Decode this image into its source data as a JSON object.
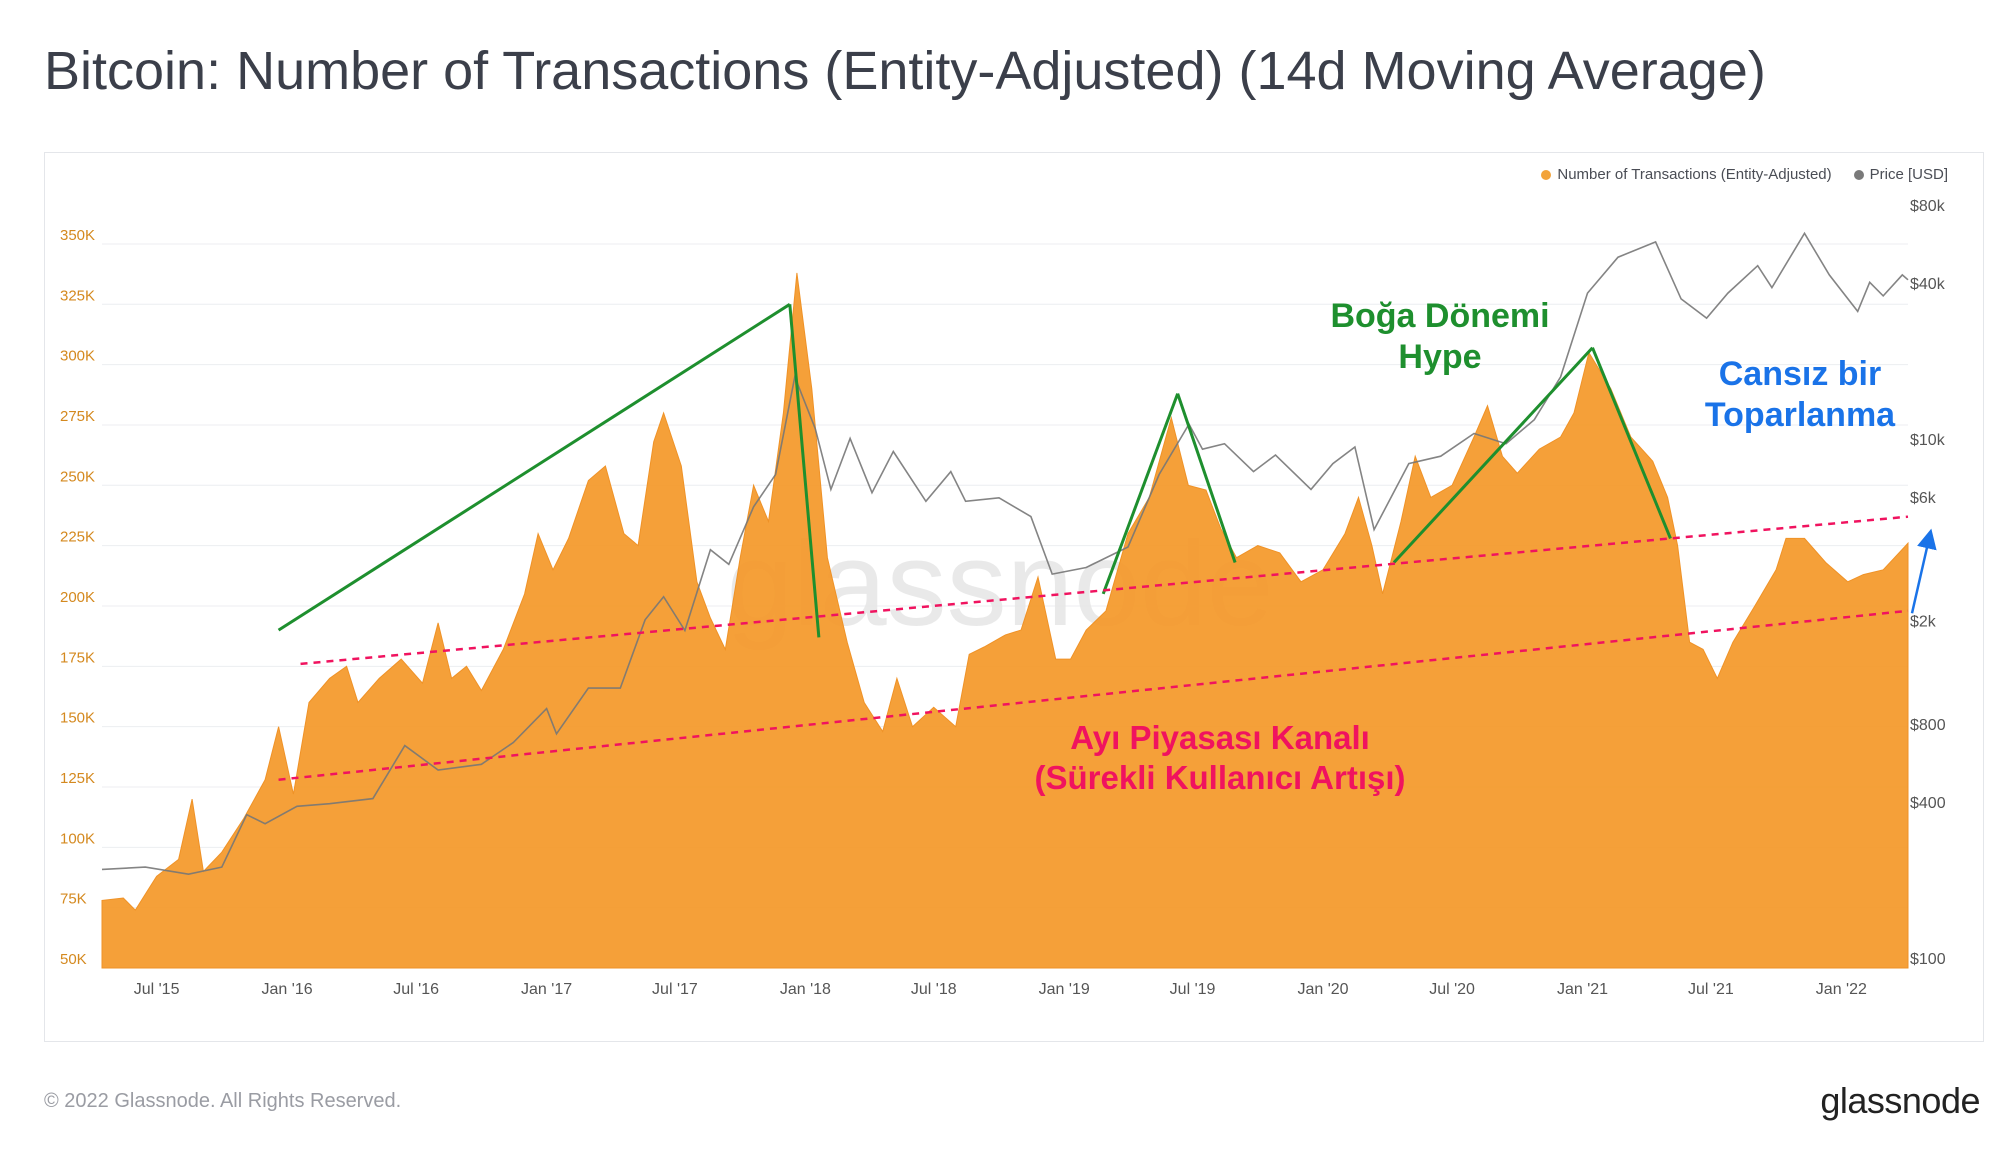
{
  "title": "Bitcoin: Number of Transactions (Entity-Adjusted) (14d Moving Average)",
  "footer": {
    "copyright": "© 2022 Glassnode. All Rights Reserved.",
    "logo": "glassnode"
  },
  "watermark": "glassnode",
  "chart_data": {
    "type": "area",
    "legend": [
      {
        "name": "Number of Transactions (Entity-Adjusted)",
        "color": "#f7931a"
      },
      {
        "name": "Price [USD]",
        "color": "#7a7a7a"
      }
    ],
    "left_axis": {
      "ticks": [
        "50K",
        "75K",
        "100K",
        "125K",
        "150K",
        "175K",
        "200K",
        "225K",
        "250K",
        "275K",
        "300K",
        "325K",
        "350K"
      ],
      "ylim": [
        50000,
        362000
      ],
      "color": "#d4891f"
    },
    "right_axis": {
      "scale": "log",
      "ticks": [
        "$100",
        "$400",
        "$800",
        "$2k",
        "$6k",
        "$10k",
        "$40k",
        "$80k"
      ],
      "ylim": [
        100,
        80000
      ]
    },
    "x_ticks": [
      "Jul '15",
      "Jan '16",
      "Jul '16",
      "Jan '17",
      "Jul '17",
      "Jan '18",
      "Jul '18",
      "Jan '19",
      "Jul '19",
      "Jan '20",
      "Jul '20",
      "Jan '21",
      "Jul '21",
      "Jan '22"
    ],
    "x_range": [
      "2015-04-15",
      "2022-04-05"
    ],
    "series": [
      {
        "name": "Number of Transactions (Entity-Adjusted)",
        "axis": "left",
        "points": [
          [
            "2015-04-15",
            78000
          ],
          [
            "2015-05-15",
            79000
          ],
          [
            "2015-06-01",
            74000
          ],
          [
            "2015-07-01",
            88000
          ],
          [
            "2015-08-01",
            95000
          ],
          [
            "2015-08-20",
            120000
          ],
          [
            "2015-09-05",
            90000
          ],
          [
            "2015-10-01",
            98000
          ],
          [
            "2015-11-01",
            112000
          ],
          [
            "2015-12-01",
            128000
          ],
          [
            "2015-12-20",
            150000
          ],
          [
            "2016-01-10",
            122000
          ],
          [
            "2016-02-01",
            160000
          ],
          [
            "2016-03-01",
            170000
          ],
          [
            "2016-03-25",
            175000
          ],
          [
            "2016-04-10",
            160000
          ],
          [
            "2016-05-10",
            170000
          ],
          [
            "2016-06-10",
            178000
          ],
          [
            "2016-07-10",
            168000
          ],
          [
            "2016-08-01",
            193000
          ],
          [
            "2016-08-20",
            170000
          ],
          [
            "2016-09-10",
            175000
          ],
          [
            "2016-10-01",
            165000
          ],
          [
            "2016-11-01",
            182000
          ],
          [
            "2016-12-01",
            205000
          ],
          [
            "2016-12-20",
            230000
          ],
          [
            "2017-01-10",
            215000
          ],
          [
            "2017-02-01",
            228000
          ],
          [
            "2017-03-01",
            252000
          ],
          [
            "2017-03-25",
            258000
          ],
          [
            "2017-04-20",
            230000
          ],
          [
            "2017-05-10",
            225000
          ],
          [
            "2017-06-01",
            268000
          ],
          [
            "2017-06-15",
            280000
          ],
          [
            "2017-07-10",
            258000
          ],
          [
            "2017-08-01",
            210000
          ],
          [
            "2017-08-20",
            195000
          ],
          [
            "2017-09-10",
            182000
          ],
          [
            "2017-10-01",
            220000
          ],
          [
            "2017-10-20",
            250000
          ],
          [
            "2017-11-10",
            235000
          ],
          [
            "2017-12-01",
            280000
          ],
          [
            "2017-12-20",
            338000
          ],
          [
            "2018-01-10",
            290000
          ],
          [
            "2018-02-01",
            220000
          ],
          [
            "2018-03-01",
            185000
          ],
          [
            "2018-03-25",
            160000
          ],
          [
            "2018-04-20",
            148000
          ],
          [
            "2018-05-10",
            170000
          ],
          [
            "2018-06-01",
            150000
          ],
          [
            "2018-07-01",
            158000
          ],
          [
            "2018-08-01",
            150000
          ],
          [
            "2018-08-20",
            180000
          ],
          [
            "2018-09-10",
            183000
          ],
          [
            "2018-10-10",
            188000
          ],
          [
            "2018-11-01",
            190000
          ],
          [
            "2018-11-25",
            212000
          ],
          [
            "2018-12-20",
            178000
          ],
          [
            "2019-01-10",
            178000
          ],
          [
            "2019-02-01",
            190000
          ],
          [
            "2019-03-01",
            198000
          ],
          [
            "2019-04-01",
            230000
          ],
          [
            "2019-05-01",
            245000
          ],
          [
            "2019-06-01",
            278000
          ],
          [
            "2019-06-25",
            250000
          ],
          [
            "2019-07-20",
            248000
          ],
          [
            "2019-08-10",
            232000
          ],
          [
            "2019-09-01",
            220000
          ],
          [
            "2019-10-01",
            225000
          ],
          [
            "2019-11-01",
            222000
          ],
          [
            "2019-12-01",
            210000
          ],
          [
            "2020-01-01",
            215000
          ],
          [
            "2020-02-01",
            230000
          ],
          [
            "2020-02-20",
            245000
          ],
          [
            "2020-03-10",
            225000
          ],
          [
            "2020-03-25",
            205000
          ],
          [
            "2020-04-20",
            235000
          ],
          [
            "2020-05-10",
            262000
          ],
          [
            "2020-06-01",
            245000
          ],
          [
            "2020-07-01",
            250000
          ],
          [
            "2020-08-01",
            270000
          ],
          [
            "2020-08-20",
            283000
          ],
          [
            "2020-09-10",
            262000
          ],
          [
            "2020-10-01",
            255000
          ],
          [
            "2020-11-01",
            265000
          ],
          [
            "2020-12-01",
            270000
          ],
          [
            "2020-12-20",
            280000
          ],
          [
            "2021-01-10",
            305000
          ],
          [
            "2021-02-10",
            290000
          ],
          [
            "2021-03-10",
            270000
          ],
          [
            "2021-04-10",
            260000
          ],
          [
            "2021-05-01",
            245000
          ],
          [
            "2021-05-15",
            225000
          ],
          [
            "2021-06-01",
            185000
          ],
          [
            "2021-06-20",
            182000
          ],
          [
            "2021-07-10",
            170000
          ],
          [
            "2021-08-01",
            185000
          ],
          [
            "2021-09-01",
            200000
          ],
          [
            "2021-10-01",
            215000
          ],
          [
            "2021-10-15",
            228000
          ],
          [
            "2021-11-10",
            228000
          ],
          [
            "2021-12-10",
            218000
          ],
          [
            "2022-01-10",
            210000
          ],
          [
            "2022-02-01",
            213000
          ],
          [
            "2022-03-01",
            215000
          ],
          [
            "2022-04-05",
            226000
          ]
        ]
      },
      {
        "name": "Price [USD]",
        "axis": "right",
        "points": [
          [
            "2015-04-15",
            240
          ],
          [
            "2015-06-15",
            245
          ],
          [
            "2015-08-15",
            230
          ],
          [
            "2015-10-01",
            245
          ],
          [
            "2015-11-05",
            390
          ],
          [
            "2015-12-01",
            360
          ],
          [
            "2016-01-15",
            420
          ],
          [
            "2016-03-01",
            430
          ],
          [
            "2016-05-01",
            450
          ],
          [
            "2016-06-15",
            720
          ],
          [
            "2016-08-01",
            580
          ],
          [
            "2016-10-01",
            610
          ],
          [
            "2016-11-15",
            740
          ],
          [
            "2017-01-01",
            1000
          ],
          [
            "2017-01-15",
            800
          ],
          [
            "2017-03-01",
            1200
          ],
          [
            "2017-04-15",
            1200
          ],
          [
            "2017-05-20",
            2200
          ],
          [
            "2017-06-15",
            2700
          ],
          [
            "2017-07-15",
            2000
          ],
          [
            "2017-08-20",
            4100
          ],
          [
            "2017-09-15",
            3600
          ],
          [
            "2017-10-20",
            6000
          ],
          [
            "2017-11-20",
            8000
          ],
          [
            "2017-12-17",
            19000
          ],
          [
            "2018-01-15",
            12000
          ],
          [
            "2018-02-06",
            7000
          ],
          [
            "2018-03-05",
            11000
          ],
          [
            "2018-04-05",
            6800
          ],
          [
            "2018-05-05",
            9800
          ],
          [
            "2018-06-20",
            6300
          ],
          [
            "2018-07-25",
            8200
          ],
          [
            "2018-08-15",
            6300
          ],
          [
            "2018-10-01",
            6500
          ],
          [
            "2018-11-15",
            5500
          ],
          [
            "2018-12-15",
            3300
          ],
          [
            "2019-02-01",
            3500
          ],
          [
            "2019-04-01",
            4200
          ],
          [
            "2019-05-15",
            8000
          ],
          [
            "2019-06-26",
            12500
          ],
          [
            "2019-07-15",
            10000
          ],
          [
            "2019-08-15",
            10500
          ],
          [
            "2019-09-25",
            8200
          ],
          [
            "2019-10-26",
            9500
          ],
          [
            "2019-12-15",
            7000
          ],
          [
            "2020-01-15",
            8800
          ],
          [
            "2020-02-15",
            10200
          ],
          [
            "2020-03-13",
            4900
          ],
          [
            "2020-05-01",
            8800
          ],
          [
            "2020-06-15",
            9400
          ],
          [
            "2020-08-01",
            11500
          ],
          [
            "2020-09-15",
            10500
          ],
          [
            "2020-10-25",
            13000
          ],
          [
            "2020-12-01",
            19000
          ],
          [
            "2021-01-08",
            40000
          ],
          [
            "2021-02-20",
            55000
          ],
          [
            "2021-04-14",
            63000
          ],
          [
            "2021-05-20",
            38000
          ],
          [
            "2021-06-25",
            32000
          ],
          [
            "2021-07-25",
            40000
          ],
          [
            "2021-09-05",
            51000
          ],
          [
            "2021-09-25",
            42000
          ],
          [
            "2021-11-10",
            68000
          ],
          [
            "2021-12-15",
            47000
          ],
          [
            "2022-01-24",
            34000
          ],
          [
            "2022-02-10",
            44000
          ],
          [
            "2022-03-01",
            39000
          ],
          [
            "2022-03-28",
            47000
          ],
          [
            "2022-04-05",
            45000
          ]
        ]
      }
    ],
    "trend_lines": [
      {
        "from": [
          "2015-12-20",
          190000
        ],
        "to": [
          "2017-12-10",
          325000
        ]
      },
      {
        "from": [
          "2017-12-10",
          325000
        ],
        "to": [
          "2018-01-20",
          187000
        ]
      },
      {
        "from": [
          "2019-02-25",
          205000
        ],
        "to": [
          "2019-06-10",
          288000
        ]
      },
      {
        "from": [
          "2019-06-10",
          288000
        ],
        "to": [
          "2019-08-30",
          218000
        ]
      },
      {
        "from": [
          "2020-04-10",
          218000
        ],
        "to": [
          "2021-01-15",
          307000
        ]
      },
      {
        "from": [
          "2021-01-15",
          307000
        ],
        "to": [
          "2021-05-05",
          228000
        ]
      }
    ],
    "channel_lines": [
      {
        "from": [
          "2016-01-20",
          176000
        ],
        "to": [
          "2022-04-05",
          237000
        ]
      },
      {
        "from": [
          "2015-12-20",
          128000
        ],
        "to": [
          "2022-04-05",
          198000
        ]
      }
    ],
    "arrow": {
      "from": [
        "2022-04-05",
        197000
      ],
      "to": [
        "2022-04-15",
        228000
      ]
    },
    "annotations": [
      {
        "lines": [
          "Boğa Dönemi",
          "Hype"
        ],
        "color": "#1e8f2e"
      },
      {
        "lines": [
          "Cansız bir",
          "Toparlanma"
        ],
        "color": "#1a73e8"
      },
      {
        "lines": [
          "Ayı Piyasası Kanalı",
          "(Sürekli Kullanıcı Artışı)"
        ],
        "color": "#f0135f"
      }
    ]
  }
}
